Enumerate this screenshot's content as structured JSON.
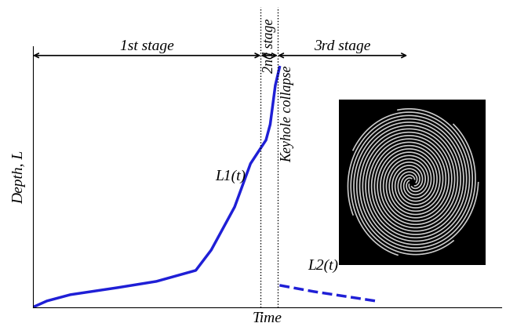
{
  "chart_data": {
    "type": "line",
    "x_label": "Time",
    "y_label": "Depth, L",
    "xlim": [
      0,
      10
    ],
    "ylim": [
      0,
      10
    ],
    "tick_labels": false,
    "series": [
      {
        "name": "L1(t)",
        "color": "#1f1fd6",
        "line_style": "solid",
        "x": [
          0,
          0.3,
          0.8,
          1.81,
          2.64,
          3.48,
          3.81,
          4.31,
          4.65,
          4.98,
          5.07,
          5.18,
          5.27
        ],
        "values": [
          0,
          0.24,
          0.48,
          0.75,
          0.99,
          1.41,
          2.19,
          3.84,
          5.5,
          6.4,
          7.0,
          8.5,
          9.19
        ]
      },
      {
        "name": "L2(t)",
        "color": "#1f1fd6",
        "line_style": "dashed",
        "x": [
          5.27,
          6.0,
          7.32
        ],
        "values": [
          0.84,
          0.6,
          0.24
        ]
      }
    ],
    "stages": [
      {
        "label": "1st stage",
        "start": 0,
        "end": 4.87
      },
      {
        "label": "2nd stage",
        "start": 4.87,
        "end": 5.23
      },
      {
        "label": "3rd stage",
        "start": 5.23,
        "end": 8.0
      }
    ],
    "annotations": [
      "Keyhole collapse"
    ]
  }
}
